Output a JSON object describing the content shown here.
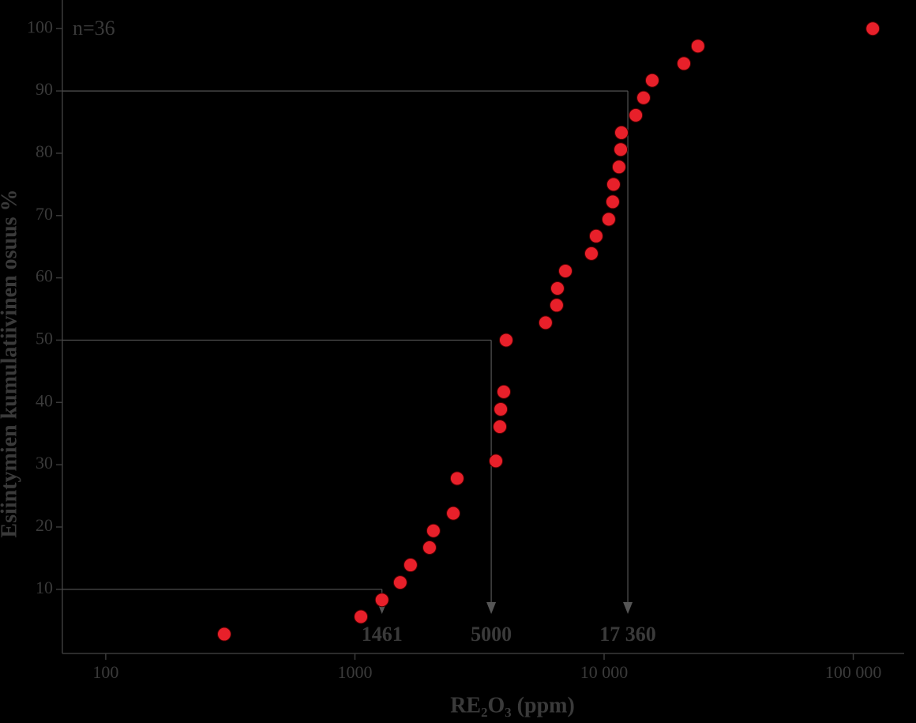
{
  "chart_data": {
    "type": "scatter",
    "x_label": "RE₂O₃ (ppm)",
    "y_label": "Esiintymien kumulatiivinen osuus %",
    "annotation": "n=36",
    "x_log": true,
    "xlim": [
      67,
      160000
    ],
    "ylim": [
      -0.3,
      104.6
    ],
    "xticks": [
      100,
      1000,
      {
        "value": 10000,
        "label": "10 000"
      },
      {
        "value": 100000,
        "label": "100 000"
      }
    ],
    "yticks": [
      10,
      20,
      30,
      40,
      50,
      60,
      70,
      80,
      90,
      100
    ],
    "color": "#e8202a",
    "x": [
      299,
      1057,
      1284,
      1520,
      1672,
      1993,
      2066,
      2482,
      2572,
      3680,
      3818,
      3847,
      3958,
      4045,
      5823,
      6450,
      6500,
      6996,
      8895,
      9292,
      10440,
      10830,
      10910,
      11480,
      11660,
      11740,
      13400,
      14400,
      15600,
      20900,
      23800,
      119700
    ],
    "values": [
      2.8,
      5.6,
      8.3,
      11.1,
      13.9,
      16.7,
      19.4,
      22.2,
      27.8,
      30.6,
      36.1,
      38.9,
      41.7,
      50,
      52.8,
      55.6,
      58.3,
      61.1,
      63.9,
      66.7,
      69.4,
      72.2,
      75,
      77.8,
      80.6,
      83.3,
      86.1,
      88.9,
      91.7,
      94.4,
      97.2,
      100
    ],
    "reference_lines": [
      {
        "y": 10,
        "x": 1284,
        "label": "1461"
      },
      {
        "y": 50,
        "x": 3524,
        "label": "5000"
      },
      {
        "y": 90,
        "x": 12450,
        "label": "17 360"
      }
    ]
  }
}
